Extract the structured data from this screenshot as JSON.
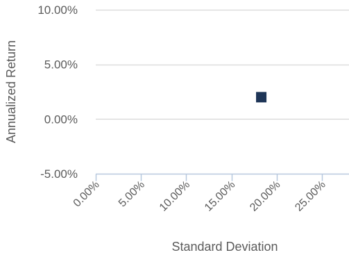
{
  "chart_data": {
    "type": "scatter",
    "xlabel": "Standard Deviation",
    "ylabel": "Annualized Return",
    "xlim": [
      0,
      0.28
    ],
    "ylim": [
      -0.05,
      0.1
    ],
    "x_ticks": [
      {
        "value": 0.0,
        "label": "0.00%"
      },
      {
        "value": 0.05,
        "label": "5.00%"
      },
      {
        "value": 0.1,
        "label": "10.00%"
      },
      {
        "value": 0.15,
        "label": "15.00%"
      },
      {
        "value": 0.2,
        "label": "20.00%"
      },
      {
        "value": 0.25,
        "label": "25.00%"
      }
    ],
    "y_ticks": [
      {
        "value": 0.1,
        "label": "10.00%"
      },
      {
        "value": 0.05,
        "label": "5.00%"
      },
      {
        "value": 0.0,
        "label": "0.00%"
      },
      {
        "value": -0.05,
        "label": "-5.00%"
      }
    ],
    "points": [
      {
        "x": 0.183,
        "y": 0.02
      }
    ],
    "marker": "square",
    "grid": "horizontal",
    "colors": {
      "point": "#1e3557",
      "gridline": "#d7d7d7",
      "axis": "#b7c8de",
      "text": "#5b5b5b"
    }
  }
}
